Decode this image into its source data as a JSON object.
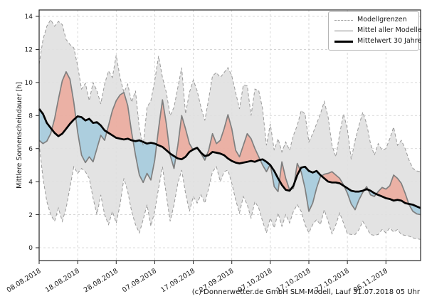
{
  "figure": {
    "caption": "(c) Donnerwetter.de GmbH SLM-Modell, Lauf 31.07.2018 05 Uhr"
  },
  "legend": {
    "items": [
      {
        "label": "Modellgrenzen",
        "style": "dashed-gray"
      },
      {
        "label": "Mittel aller Modelle",
        "style": "solid-gray"
      },
      {
        "label": "Mittelwert 30 Jahre",
        "style": "solid-black-thick"
      }
    ]
  },
  "colors": {
    "envelope_fill": "#e0e0e0",
    "envelope_edge": "#9a9a9a",
    "above_fill": "#ee9e8e",
    "below_fill": "#8fc3dc",
    "model_mean_line": "#7f7f7f",
    "mean30_line": "#000000",
    "grid": "#cfcfcf",
    "spine": "#262626",
    "tick_text": "#1a1a1a"
  },
  "chart_data": {
    "type": "line",
    "title": "",
    "xlabel": "",
    "ylabel": "Mittlere Sonnenscheindauer [h]",
    "ylim": [
      -0.8,
      14.4
    ],
    "y_ticks": [
      0,
      2,
      4,
      6,
      8,
      10,
      12,
      14
    ],
    "x_tick_labels": [
      "08.08.2018",
      "18.08.2018",
      "28.08.2018",
      "07.09.2018",
      "17.09.2018",
      "27.09.2018",
      "07.10.2018",
      "17.10.2018",
      "27.10.2018",
      "06.11.2018"
    ],
    "x_tick_days": [
      0,
      10,
      20,
      30,
      40,
      50,
      60,
      70,
      80,
      90
    ],
    "x_total_days": 99,
    "grid": true,
    "legend_position": "upper right",
    "fill_legend": {
      "above_30y_mean": "red/salmon",
      "below_30y_mean": "light blue",
      "model_range": "gray"
    },
    "series": [
      {
        "name": "Modellgrenze oben",
        "style": "dashed",
        "values": [
          11.1,
          12.6,
          13.4,
          13.8,
          13.4,
          13.7,
          13.5,
          12.6,
          12.3,
          12.1,
          11.0,
          9.6,
          9.95,
          8.9,
          10.0,
          9.5,
          8.7,
          9.9,
          10.7,
          10.3,
          11.65,
          10.3,
          9.4,
          9.9,
          8.8,
          9.5,
          7.2,
          6.2,
          8.5,
          8.9,
          10.1,
          11.6,
          10.3,
          9.4,
          8.0,
          8.5,
          9.7,
          10.9,
          8.1,
          9.4,
          10.15,
          9.5,
          8.5,
          7.7,
          9.0,
          10.4,
          10.6,
          10.3,
          10.6,
          10.9,
          10.4,
          9.4,
          8.4,
          9.85,
          9.8,
          8.0,
          9.6,
          9.5,
          8.4,
          6.2,
          7.5,
          5.9,
          6.6,
          5.8,
          6.4,
          5.9,
          6.8,
          7.4,
          8.3,
          8.1,
          6.4,
          6.9,
          7.5,
          8.1,
          8.85,
          7.9,
          6.2,
          5.5,
          6.9,
          8.1,
          7.2,
          5.35,
          6.5,
          7.4,
          8.2,
          7.5,
          6.3,
          5.6,
          6.3,
          5.9,
          6.0,
          6.6,
          7.3,
          6.2,
          6.5,
          6.0,
          5.3,
          4.8,
          4.65,
          4.6
        ]
      },
      {
        "name": "Modellgrenze unten",
        "style": "dashed",
        "values": [
          6.3,
          4.2,
          2.8,
          2.0,
          1.6,
          2.4,
          1.6,
          2.4,
          3.65,
          4.9,
          4.5,
          4.8,
          4.6,
          4.2,
          3.0,
          2.0,
          3.2,
          2.0,
          1.4,
          2.2,
          1.5,
          2.6,
          4.2,
          3.4,
          2.2,
          1.4,
          0.9,
          1.7,
          2.6,
          1.3,
          2.2,
          3.6,
          4.9,
          3.2,
          1.6,
          2.6,
          3.9,
          4.7,
          3.3,
          2.2,
          3.1,
          2.7,
          3.2,
          2.7,
          3.6,
          4.6,
          4.9,
          4.0,
          4.6,
          4.7,
          3.9,
          2.9,
          2.1,
          3.1,
          2.6,
          1.8,
          2.8,
          2.4,
          1.6,
          0.9,
          1.8,
          1.2,
          2.1,
          1.3,
          2.0,
          1.5,
          2.2,
          2.6,
          2.2,
          1.4,
          0.9,
          1.4,
          1.7,
          1.4,
          2.3,
          1.6,
          0.85,
          1.4,
          2.1,
          1.5,
          0.85,
          0.8,
          0.8,
          1.1,
          1.6,
          1.2,
          0.8,
          0.75,
          0.8,
          1.1,
          0.9,
          1.2,
          0.95,
          1.1,
          0.8,
          0.75,
          0.7,
          0.6,
          0.55,
          0.5
        ]
      },
      {
        "name": "Mittel aller Modelle",
        "style": "solid-gray",
        "values": [
          6.5,
          6.3,
          6.45,
          6.9,
          7.8,
          9.0,
          10.1,
          10.65,
          10.2,
          8.8,
          7.0,
          5.6,
          5.15,
          5.5,
          5.2,
          6.0,
          6.8,
          6.5,
          7.4,
          8.3,
          8.9,
          9.25,
          9.4,
          8.6,
          7.0,
          5.6,
          4.4,
          3.95,
          4.5,
          4.1,
          5.3,
          7.2,
          8.95,
          7.5,
          5.6,
          4.8,
          6.2,
          8.0,
          7.2,
          6.3,
          5.9,
          6.05,
          5.7,
          5.3,
          5.9,
          6.9,
          6.3,
          6.5,
          7.2,
          8.05,
          7.2,
          5.9,
          5.5,
          6.2,
          6.9,
          6.6,
          6.0,
          5.5,
          5.0,
          4.6,
          5.05,
          3.7,
          3.4,
          5.2,
          4.2,
          3.5,
          3.6,
          5.1,
          4.6,
          3.6,
          2.2,
          2.7,
          3.6,
          4.3,
          4.45,
          4.5,
          4.6,
          4.4,
          4.2,
          3.8,
          3.3,
          2.65,
          2.3,
          2.9,
          3.35,
          3.7,
          3.2,
          3.1,
          3.4,
          3.65,
          3.55,
          3.75,
          4.4,
          4.2,
          3.9,
          3.3,
          2.6,
          2.2,
          2.05,
          2.0
        ]
      },
      {
        "name": "Mittelwert 30 Jahre",
        "style": "solid-black-thick",
        "values": [
          8.4,
          8.1,
          7.55,
          7.25,
          6.95,
          6.75,
          6.9,
          7.2,
          7.5,
          7.75,
          7.95,
          7.9,
          7.7,
          7.8,
          7.55,
          7.6,
          7.4,
          7.1,
          6.95,
          6.8,
          6.65,
          6.6,
          6.55,
          6.6,
          6.5,
          6.45,
          6.5,
          6.4,
          6.3,
          6.35,
          6.3,
          6.2,
          6.1,
          5.9,
          5.7,
          5.55,
          5.4,
          5.35,
          5.5,
          5.8,
          5.95,
          6.05,
          5.75,
          5.55,
          5.6,
          5.8,
          5.75,
          5.7,
          5.6,
          5.4,
          5.25,
          5.15,
          5.1,
          5.15,
          5.2,
          5.25,
          5.2,
          5.3,
          5.35,
          5.2,
          5.0,
          4.65,
          4.2,
          3.8,
          3.5,
          3.45,
          3.75,
          4.4,
          4.85,
          4.9,
          4.65,
          4.55,
          4.65,
          4.4,
          4.2,
          4.0,
          3.95,
          3.95,
          3.9,
          3.75,
          3.6,
          3.45,
          3.4,
          3.4,
          3.45,
          3.55,
          3.45,
          3.3,
          3.2,
          3.1,
          3.0,
          2.95,
          2.85,
          2.9,
          2.85,
          2.7,
          2.65,
          2.6,
          2.5,
          2.4
        ]
      }
    ]
  }
}
